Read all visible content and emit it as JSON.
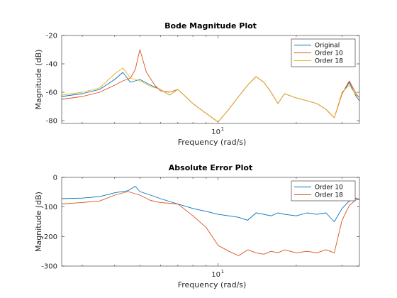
{
  "chart_data": [
    {
      "type": "line",
      "title": "Bode Magnitude Plot",
      "xlabel": "Frequency  (rad/s)",
      "ylabel": "Magnitude (dB)",
      "xscale": "log",
      "xlim": [
        2.5,
        35
      ],
      "ylim": [
        -82,
        -20
      ],
      "yticks": [
        -80,
        -60,
        -40,
        -20
      ],
      "yticklabels": [
        "-80",
        "-60",
        "-40",
        "-20"
      ],
      "xticks": [
        10
      ],
      "xticklabels": [
        "10"
      ],
      "xticklabel_exponent": "1",
      "legend_position": "top-right",
      "series": [
        {
          "name": "Original",
          "color": "#0072BD",
          "x": [
            2.5,
            3.0,
            3.5,
            4.0,
            4.3,
            4.6,
            5.0,
            5.5,
            6.0,
            6.5,
            7.0,
            8.0,
            9.0,
            10.0,
            11.0,
            12.0,
            13.0,
            14.0,
            15.0,
            16.0,
            17.0,
            18.0,
            20.0,
            22.0,
            24.0,
            26.0,
            28.0,
            30.0,
            32.0,
            34.0,
            35.0
          ],
          "y": [
            -63,
            -61,
            -58,
            -51,
            -46,
            -53,
            -51,
            -55,
            -58,
            -62,
            -58,
            -68,
            -75,
            -81,
            -72,
            -63,
            -55,
            -49,
            -53,
            -60,
            -68,
            -61,
            -64,
            -66,
            -68,
            -72,
            -78,
            -61,
            -53,
            -63,
            -66
          ]
        },
        {
          "name": "Order 10",
          "color": "#D95319",
          "x": [
            2.5,
            3.0,
            3.5,
            4.0,
            4.3,
            4.6,
            4.8,
            5.0,
            5.3,
            5.7,
            6.0,
            6.5,
            7.0,
            8.0,
            9.0,
            10.0,
            11.0,
            12.0,
            13.0,
            14.0,
            15.0,
            16.0,
            17.0,
            18.0,
            20.0,
            22.0,
            24.0,
            26.0,
            28.0,
            30.0,
            32.0,
            34.0,
            35.0
          ],
          "y": [
            -65,
            -63,
            -60,
            -55,
            -52,
            -50,
            -44,
            -30,
            -46,
            -55,
            -59,
            -60,
            -58,
            -68,
            -75,
            -81,
            -72,
            -63,
            -55,
            -49,
            -53,
            -60,
            -68,
            -61,
            -64,
            -66,
            -68,
            -72,
            -78,
            -61,
            -52,
            -61,
            -64
          ]
        },
        {
          "name": "Order 18",
          "color": "#EDB120",
          "x": [
            2.5,
            3.0,
            3.5,
            4.0,
            4.3,
            4.6,
            5.0,
            5.5,
            6.0,
            6.5,
            7.0,
            8.0,
            9.0,
            10.0,
            11.0,
            12.0,
            13.0,
            14.0,
            15.0,
            16.0,
            17.0,
            18.0,
            20.0,
            22.0,
            24.0,
            26.0,
            28.0,
            30.0,
            32.0,
            34.0,
            35.0
          ],
          "y": [
            -62,
            -60,
            -57,
            -47,
            -43,
            -50,
            -52,
            -56,
            -58,
            -62,
            -58,
            -68,
            -75,
            -81,
            -72,
            -63,
            -55,
            -49,
            -53,
            -60,
            -68,
            -61,
            -64,
            -66,
            -68,
            -72,
            -78,
            -60,
            -55,
            -62,
            -64
          ]
        }
      ]
    },
    {
      "type": "line",
      "title": "Absolute Error Plot",
      "xlabel": "Frequency  (rad/s)",
      "ylabel": "Magnitude (dB)",
      "xscale": "log",
      "xlim": [
        2.5,
        35
      ],
      "ylim": [
        -300,
        0
      ],
      "yticks": [
        -300,
        -200,
        -100,
        0
      ],
      "yticklabels": [
        "-300",
        "-200",
        "-100",
        "0"
      ],
      "xticks": [
        10
      ],
      "xticklabels": [
        "10"
      ],
      "xticklabel_exponent": "1",
      "legend_position": "top-right",
      "series": [
        {
          "name": "Order 10",
          "color": "#0072BD",
          "x": [
            2.5,
            3.0,
            3.5,
            4.0,
            4.5,
            4.8,
            5.0,
            5.5,
            6.0,
            7.0,
            8.0,
            9.0,
            10.0,
            11.0,
            12.0,
            13.0,
            14.0,
            15.0,
            16.0,
            17.0,
            18.0,
            20.0,
            22.0,
            24.0,
            26.0,
            28.0,
            30.0,
            32.0,
            34.0,
            35.0
          ],
          "y": [
            -72,
            -70,
            -65,
            -52,
            -45,
            -30,
            -48,
            -60,
            -72,
            -90,
            -105,
            -115,
            -125,
            -130,
            -135,
            -145,
            -120,
            -125,
            -130,
            -120,
            -125,
            -130,
            -120,
            -125,
            -120,
            -150,
            -105,
            -80,
            -70,
            -75
          ]
        },
        {
          "name": "Order 18",
          "color": "#D95319",
          "x": [
            2.5,
            3.0,
            3.5,
            4.0,
            4.5,
            5.0,
            5.5,
            6.0,
            7.0,
            8.0,
            9.0,
            10.0,
            11.0,
            12.0,
            13.0,
            14.0,
            15.0,
            16.0,
            17.0,
            18.0,
            20.0,
            22.0,
            24.0,
            26.0,
            28.0,
            30.0,
            32.0,
            34.0,
            35.0
          ],
          "y": [
            -90,
            -85,
            -80,
            -60,
            -48,
            -60,
            -78,
            -85,
            -90,
            -130,
            -170,
            -230,
            -250,
            -265,
            -245,
            -255,
            -260,
            -250,
            -255,
            -245,
            -255,
            -250,
            -255,
            -245,
            -255,
            -145,
            -95,
            -75,
            -75
          ]
        }
      ]
    }
  ]
}
